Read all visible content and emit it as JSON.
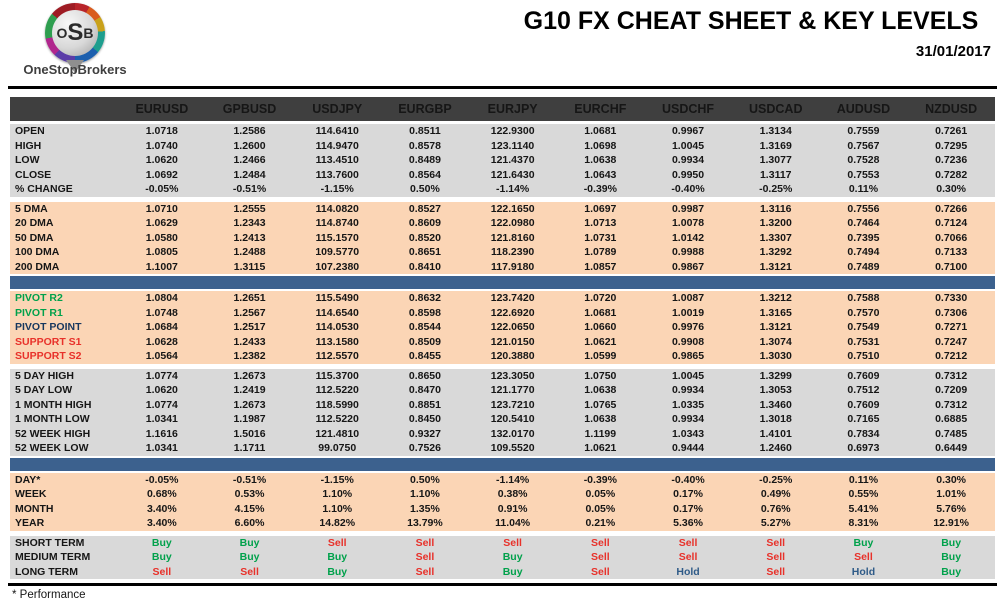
{
  "header": {
    "logo": {
      "letters": [
        "O",
        "S",
        "B"
      ],
      "name": "OneStopBrokers"
    },
    "title": "G10 FX CHEAT SHEET & KEY LEVELS",
    "date": "31/01/2017"
  },
  "colors": {
    "header_band": "#3f3f3f",
    "gray_band": "#d9d9d9",
    "peach_band": "#fbd5b5",
    "blue_separator": "#3c618e",
    "buy": "#00a14b",
    "sell": "#e8312a",
    "hold": "#2f5b88",
    "resistance_label": "#00a14b",
    "support_label": "#e8312a",
    "pivot_label": "#17375e"
  },
  "table": {
    "columns": [
      "EURUSD",
      "GPBUSD",
      "USDJPY",
      "EURGBP",
      "EURJPY",
      "EURCHF",
      "USDCHF",
      "USDCAD",
      "AUDUSD",
      "NZDUSD"
    ],
    "sections": [
      {
        "band": "gray",
        "separator_after": "gap",
        "rows": [
          {
            "label": "OPEN",
            "values": [
              "1.0718",
              "1.2586",
              "114.6410",
              "0.8511",
              "122.9300",
              "1.0681",
              "0.9967",
              "1.3134",
              "0.7559",
              "0.7261"
            ]
          },
          {
            "label": "HIGH",
            "values": [
              "1.0740",
              "1.2600",
              "114.9470",
              "0.8578",
              "123.1140",
              "1.0698",
              "1.0045",
              "1.3169",
              "0.7567",
              "0.7295"
            ]
          },
          {
            "label": "LOW",
            "values": [
              "1.0620",
              "1.2466",
              "113.4510",
              "0.8489",
              "121.4370",
              "1.0638",
              "0.9934",
              "1.3077",
              "0.7528",
              "0.7236"
            ]
          },
          {
            "label": "CLOSE",
            "values": [
              "1.0692",
              "1.2484",
              "113.7600",
              "0.8564",
              "121.6430",
              "1.0643",
              "0.9950",
              "1.3117",
              "0.7553",
              "0.7282"
            ]
          },
          {
            "label": "% CHANGE",
            "values": [
              "-0.05%",
              "-0.51%",
              "-1.15%",
              "0.50%",
              "-1.14%",
              "-0.39%",
              "-0.40%",
              "-0.25%",
              "0.11%",
              "0.30%"
            ]
          }
        ]
      },
      {
        "band": "peach",
        "separator_after": "blue",
        "rows": [
          {
            "label": "5 DMA",
            "values": [
              "1.0710",
              "1.2555",
              "114.0820",
              "0.8527",
              "122.1650",
              "1.0697",
              "0.9987",
              "1.3116",
              "0.7556",
              "0.7266"
            ]
          },
          {
            "label": "20 DMA",
            "values": [
              "1.0629",
              "1.2343",
              "114.8740",
              "0.8609",
              "122.0980",
              "1.0713",
              "1.0078",
              "1.3200",
              "0.7464",
              "0.7124"
            ]
          },
          {
            "label": "50 DMA",
            "values": [
              "1.0580",
              "1.2413",
              "115.1570",
              "0.8520",
              "121.8160",
              "1.0731",
              "1.0142",
              "1.3307",
              "0.7395",
              "0.7066"
            ]
          },
          {
            "label": "100 DMA",
            "values": [
              "1.0805",
              "1.2488",
              "109.5770",
              "0.8651",
              "118.2390",
              "1.0789",
              "0.9988",
              "1.3292",
              "0.7494",
              "0.7133"
            ]
          },
          {
            "label": "200 DMA",
            "values": [
              "1.1007",
              "1.3115",
              "107.2380",
              "0.8410",
              "117.9180",
              "1.0857",
              "0.9867",
              "1.3121",
              "0.7489",
              "0.7100"
            ]
          }
        ]
      },
      {
        "band": "peach",
        "separator_after": "gap",
        "rows": [
          {
            "label": "PIVOT R2",
            "label_color": "green",
            "values": [
              "1.0804",
              "1.2651",
              "115.5490",
              "0.8632",
              "123.7420",
              "1.0720",
              "1.0087",
              "1.3212",
              "0.7588",
              "0.7330"
            ]
          },
          {
            "label": "PIVOT R1",
            "label_color": "green",
            "values": [
              "1.0748",
              "1.2567",
              "114.6540",
              "0.8598",
              "122.6920",
              "1.0681",
              "1.0019",
              "1.3165",
              "0.7570",
              "0.7306"
            ]
          },
          {
            "label": "PIVOT POINT",
            "label_color": "navy",
            "values": [
              "1.0684",
              "1.2517",
              "114.0530",
              "0.8544",
              "122.0650",
              "1.0660",
              "0.9976",
              "1.3121",
              "0.7549",
              "0.7271"
            ]
          },
          {
            "label": "SUPPORT S1",
            "label_color": "red",
            "values": [
              "1.0628",
              "1.2433",
              "113.1580",
              "0.8509",
              "121.0150",
              "1.0621",
              "0.9908",
              "1.3074",
              "0.7531",
              "0.7247"
            ]
          },
          {
            "label": "SUPPORT S2",
            "label_color": "red",
            "values": [
              "1.0564",
              "1.2382",
              "112.5570",
              "0.8455",
              "120.3880",
              "1.0599",
              "0.9865",
              "1.3030",
              "0.7510",
              "0.7212"
            ]
          }
        ]
      },
      {
        "band": "gray",
        "separator_after": "blue",
        "rows": [
          {
            "label": "5 DAY HIGH",
            "values": [
              "1.0774",
              "1.2673",
              "115.3700",
              "0.8650",
              "123.3050",
              "1.0750",
              "1.0045",
              "1.3299",
              "0.7609",
              "0.7312"
            ]
          },
          {
            "label": "5 DAY LOW",
            "values": [
              "1.0620",
              "1.2419",
              "112.5220",
              "0.8470",
              "121.1770",
              "1.0638",
              "0.9934",
              "1.3053",
              "0.7512",
              "0.7209"
            ]
          },
          {
            "label": "1 MONTH HIGH",
            "values": [
              "1.0774",
              "1.2673",
              "118.5990",
              "0.8851",
              "123.7210",
              "1.0765",
              "1.0335",
              "1.3460",
              "0.7609",
              "0.7312"
            ]
          },
          {
            "label": "1 MONTH LOW",
            "values": [
              "1.0341",
              "1.1987",
              "112.5220",
              "0.8450",
              "120.5410",
              "1.0638",
              "0.9934",
              "1.3018",
              "0.7165",
              "0.6885"
            ]
          },
          {
            "label": "52 WEEK HIGH",
            "values": [
              "1.1616",
              "1.5016",
              "121.4810",
              "0.9327",
              "132.0170",
              "1.1199",
              "1.0343",
              "1.4101",
              "0.7834",
              "0.7485"
            ]
          },
          {
            "label": "52 WEEK LOW",
            "values": [
              "1.0341",
              "1.1711",
              "99.0750",
              "0.7526",
              "109.5520",
              "1.0621",
              "0.9444",
              "1.2460",
              "0.6973",
              "0.6449"
            ]
          }
        ]
      },
      {
        "band": "peach",
        "separator_after": "gap",
        "rows": [
          {
            "label": "DAY*",
            "values": [
              "-0.05%",
              "-0.51%",
              "-1.15%",
              "0.50%",
              "-1.14%",
              "-0.39%",
              "-0.40%",
              "-0.25%",
              "0.11%",
              "0.30%"
            ]
          },
          {
            "label": "WEEK",
            "values": [
              "0.68%",
              "0.53%",
              "1.10%",
              "1.10%",
              "0.38%",
              "0.05%",
              "0.17%",
              "0.49%",
              "0.55%",
              "1.01%"
            ]
          },
          {
            "label": "MONTH",
            "values": [
              "3.40%",
              "4.15%",
              "1.10%",
              "1.35%",
              "0.91%",
              "0.05%",
              "0.17%",
              "0.76%",
              "5.41%",
              "5.76%"
            ]
          },
          {
            "label": "YEAR",
            "values": [
              "3.40%",
              "6.60%",
              "14.82%",
              "13.79%",
              "11.04%",
              "0.21%",
              "5.36%",
              "5.27%",
              "8.31%",
              "12.91%"
            ]
          }
        ]
      },
      {
        "band": "gray",
        "separator_after": "none",
        "rows": [
          {
            "label": "SHORT TERM",
            "values": [
              "Buy",
              "Buy",
              "Sell",
              "Sell",
              "Sell",
              "Sell",
              "Sell",
              "Sell",
              "Buy",
              "Buy"
            ]
          },
          {
            "label": "MEDIUM TERM",
            "values": [
              "Buy",
              "Buy",
              "Buy",
              "Sell",
              "Buy",
              "Sell",
              "Sell",
              "Sell",
              "Sell",
              "Buy"
            ]
          },
          {
            "label": "LONG TERM",
            "values": [
              "Sell",
              "Sell",
              "Buy",
              "Sell",
              "Buy",
              "Sell",
              "Hold",
              "Sell",
              "Hold",
              "Buy"
            ]
          }
        ]
      }
    ]
  },
  "footer": {
    "note": "* Performance"
  }
}
